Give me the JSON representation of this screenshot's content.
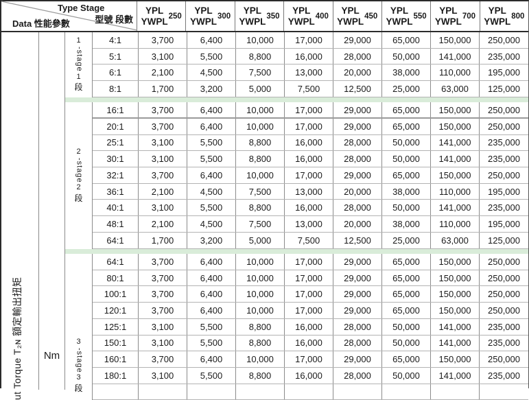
{
  "table": {
    "corner": {
      "type_stage_en": "Type Stage",
      "type_stage_cjk": "型號 段數",
      "data_label": "Data 性能參數"
    },
    "columns": [
      {
        "l1": "YPL",
        "l2": "YWPL",
        "size": "250"
      },
      {
        "l1": "YPL",
        "l2": "YWPL",
        "size": "300"
      },
      {
        "l1": "YPL",
        "l2": "YWPL",
        "size": "350"
      },
      {
        "l1": "YPL",
        "l2": "YWPL",
        "size": "400"
      },
      {
        "l1": "YPL",
        "l2": "YWPL",
        "size": "450"
      },
      {
        "l1": "YPL",
        "l2": "YWPL",
        "size": "550"
      },
      {
        "l1": "YPL",
        "l2": "YWPL",
        "size": "700"
      },
      {
        "l1": "YPL",
        "l2": "YWPL",
        "size": "800"
      }
    ],
    "left_axis": {
      "torque_label": "ut Torque T₂ɴ 額定輸出扭矩",
      "unit": "Nm"
    },
    "groups": [
      {
        "stage": {
          "d1": "1",
          "word": "-stage",
          "d2": "1",
          "cjk": "段"
        },
        "rows": [
          {
            "ratio": "4:1",
            "values": [
              "3,700",
              "6,400",
              "10,000",
              "17,000",
              "29,000",
              "65,000",
              "150,000",
              "250,000"
            ]
          },
          {
            "ratio": "5:1",
            "values": [
              "3,100",
              "5,500",
              "8,800",
              "16,000",
              "28,000",
              "50,000",
              "141,000",
              "235,000"
            ]
          },
          {
            "ratio": "6:1",
            "values": [
              "2,100",
              "4,500",
              "7,500",
              "13,000",
              "20,000",
              "38,000",
              "110,000",
              "195,000"
            ]
          },
          {
            "ratio": "8:1",
            "values": [
              "1,700",
              "3,200",
              "5,000",
              "7,500",
              "12,500",
              "25,000",
              "63,000",
              "125,000"
            ]
          }
        ]
      },
      {
        "stage": {
          "d1": "2",
          "word": "-stage",
          "d2": "2",
          "cjk": "段"
        },
        "rows": [
          {
            "ratio": "16:1",
            "thick_bottom": true,
            "values": [
              "3,700",
              "6,400",
              "10,000",
              "17,000",
              "29,000",
              "65,000",
              "150,000",
              "250,000"
            ]
          },
          {
            "ratio": "20:1",
            "values": [
              "3,700",
              "6,400",
              "10,000",
              "17,000",
              "29,000",
              "65,000",
              "150,000",
              "250,000"
            ]
          },
          {
            "ratio": "25:1",
            "values": [
              "3,100",
              "5,500",
              "8,800",
              "16,000",
              "28,000",
              "50,000",
              "141,000",
              "235,000"
            ]
          },
          {
            "ratio": "30:1",
            "values": [
              "3,100",
              "5,500",
              "8,800",
              "16,000",
              "28,000",
              "50,000",
              "141,000",
              "235,000"
            ]
          },
          {
            "ratio": "32:1",
            "values": [
              "3,700",
              "6,400",
              "10,000",
              "17,000",
              "29,000",
              "65,000",
              "150,000",
              "250,000"
            ]
          },
          {
            "ratio": "36:1",
            "values": [
              "2,100",
              "4,500",
              "7,500",
              "13,000",
              "20,000",
              "38,000",
              "110,000",
              "195,000"
            ]
          },
          {
            "ratio": "40:1",
            "values": [
              "3,100",
              "5,500",
              "8,800",
              "16,000",
              "28,000",
              "50,000",
              "141,000",
              "235,000"
            ]
          },
          {
            "ratio": "48:1",
            "values": [
              "2,100",
              "4,500",
              "7,500",
              "13,000",
              "20,000",
              "38,000",
              "110,000",
              "195,000"
            ]
          },
          {
            "ratio": "64:1",
            "values": [
              "1,700",
              "3,200",
              "5,000",
              "7,500",
              "12,500",
              "25,000",
              "63,000",
              "125,000"
            ]
          }
        ]
      },
      {
        "stage": {
          "d1": "3",
          "word": "-stage",
          "d2": "3",
          "cjk": "段"
        },
        "clipped_extra_row": true,
        "rows": [
          {
            "ratio": "64:1",
            "values": [
              "3,700",
              "6,400",
              "10,000",
              "17,000",
              "29,000",
              "65,000",
              "150,000",
              "250,000"
            ]
          },
          {
            "ratio": "80:1",
            "values": [
              "3,700",
              "6,400",
              "10,000",
              "17,000",
              "29,000",
              "65,000",
              "150,000",
              "250,000"
            ]
          },
          {
            "ratio": "100:1",
            "values": [
              "3,700",
              "6,400",
              "10,000",
              "17,000",
              "29,000",
              "65,000",
              "150,000",
              "250,000"
            ]
          },
          {
            "ratio": "120:1",
            "values": [
              "3,700",
              "6,400",
              "10,000",
              "17,000",
              "29,000",
              "65,000",
              "150,000",
              "250,000"
            ]
          },
          {
            "ratio": "125:1",
            "values": [
              "3,100",
              "5,500",
              "8,800",
              "16,000",
              "28,000",
              "50,000",
              "141,000",
              "235,000"
            ]
          },
          {
            "ratio": "150:1",
            "values": [
              "3,100",
              "5,500",
              "8,800",
              "16,000",
              "28,000",
              "50,000",
              "141,000",
              "235,000"
            ]
          },
          {
            "ratio": "160:1",
            "values": [
              "3,700",
              "6,400",
              "10,000",
              "17,000",
              "29,000",
              "65,000",
              "150,000",
              "250,000"
            ]
          },
          {
            "ratio": "180:1",
            "values": [
              "3,100",
              "5,500",
              "8,800",
              "16,000",
              "28,000",
              "50,000",
              "141,000",
              "235,000"
            ]
          }
        ]
      }
    ]
  },
  "colors": {
    "band_green": "#d9ecd9",
    "grid_dark": "#2b2b2b",
    "grid_mid": "#8a8a8a",
    "grid_light": "#b3b3b3"
  }
}
